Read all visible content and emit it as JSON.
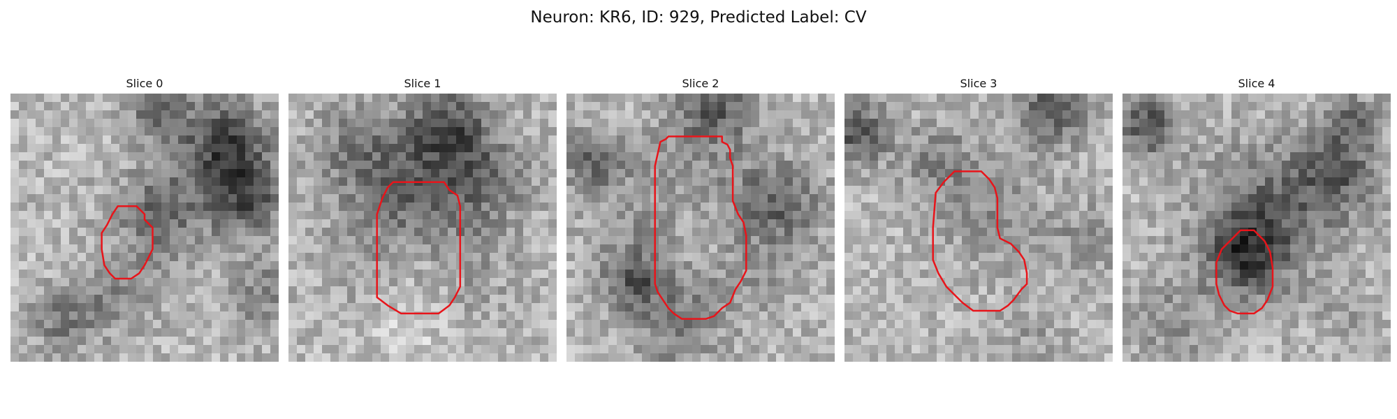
{
  "figure": {
    "title": "Neuron: KR6, ID: 929, Predicted Label: CV",
    "panels": [
      {
        "label": "Slice 0",
        "seed": 11,
        "texture": {
          "blobs": [
            [
              0.56,
              0.45,
              0.12,
              -0.3
            ],
            [
              0.8,
              0.2,
              0.12,
              -0.45
            ],
            [
              0.88,
              0.4,
              0.1,
              -0.35
            ],
            [
              0.2,
              0.85,
              0.08,
              -0.25
            ],
            [
              0.4,
              0.75,
              0.1,
              -0.2
            ],
            [
              0.55,
              0.05,
              0.08,
              -0.3
            ],
            [
              0.95,
              0.75,
              0.1,
              -0.2
            ]
          ]
        },
        "outline": [
          [
            0.4,
            0.42
          ],
          [
            0.47,
            0.42
          ],
          [
            0.5,
            0.45
          ],
          [
            0.5,
            0.47
          ],
          [
            0.53,
            0.5
          ],
          [
            0.53,
            0.58
          ],
          [
            0.52,
            0.6
          ],
          [
            0.5,
            0.64
          ],
          [
            0.48,
            0.67
          ],
          [
            0.45,
            0.69
          ],
          [
            0.39,
            0.69
          ],
          [
            0.37,
            0.67
          ],
          [
            0.35,
            0.64
          ],
          [
            0.34,
            0.58
          ],
          [
            0.34,
            0.52
          ],
          [
            0.36,
            0.49
          ],
          [
            0.38,
            0.45
          ]
        ]
      },
      {
        "label": "Slice 1",
        "seed": 23,
        "texture": {
          "blobs": [
            [
              0.5,
              0.55,
              0.2,
              -0.28
            ],
            [
              0.5,
              0.3,
              0.16,
              -0.18
            ],
            [
              0.6,
              0.12,
              0.1,
              -0.35
            ],
            [
              0.25,
              0.2,
              0.12,
              -0.2
            ],
            [
              0.75,
              0.3,
              0.1,
              -0.2
            ],
            [
              0.5,
              0.6,
              0.12,
              0.2
            ],
            [
              0.45,
              0.85,
              0.12,
              0.15
            ]
          ]
        },
        "outline": [
          [
            0.39,
            0.33
          ],
          [
            0.58,
            0.33
          ],
          [
            0.6,
            0.36
          ],
          [
            0.63,
            0.38
          ],
          [
            0.64,
            0.42
          ],
          [
            0.64,
            0.72
          ],
          [
            0.62,
            0.76
          ],
          [
            0.6,
            0.79
          ],
          [
            0.56,
            0.82
          ],
          [
            0.42,
            0.82
          ],
          [
            0.37,
            0.79
          ],
          [
            0.33,
            0.76
          ],
          [
            0.33,
            0.7
          ],
          [
            0.33,
            0.45
          ],
          [
            0.35,
            0.39
          ],
          [
            0.37,
            0.35
          ]
        ]
      },
      {
        "label": "Slice 2",
        "seed": 37,
        "texture": {
          "blobs": [
            [
              0.5,
              0.52,
              0.22,
              -0.3
            ],
            [
              0.5,
              0.52,
              0.12,
              0.28
            ],
            [
              0.55,
              0.05,
              0.1,
              -0.35
            ],
            [
              0.1,
              0.25,
              0.08,
              -0.3
            ],
            [
              0.25,
              0.7,
              0.08,
              -0.3
            ],
            [
              0.8,
              0.4,
              0.1,
              -0.25
            ],
            [
              0.4,
              0.9,
              0.1,
              -0.15
            ]
          ]
        },
        "outline": [
          [
            0.35,
            0.18
          ],
          [
            0.37,
            0.17
          ],
          [
            0.38,
            0.16
          ],
          [
            0.58,
            0.16
          ],
          [
            0.58,
            0.18
          ],
          [
            0.6,
            0.19
          ],
          [
            0.61,
            0.21
          ],
          [
            0.61,
            0.24
          ],
          [
            0.62,
            0.27
          ],
          [
            0.62,
            0.4
          ],
          [
            0.64,
            0.45
          ],
          [
            0.66,
            0.48
          ],
          [
            0.67,
            0.53
          ],
          [
            0.67,
            0.66
          ],
          [
            0.65,
            0.7
          ],
          [
            0.63,
            0.73
          ],
          [
            0.61,
            0.78
          ],
          [
            0.58,
            0.8
          ],
          [
            0.56,
            0.82
          ],
          [
            0.55,
            0.83
          ],
          [
            0.52,
            0.84
          ],
          [
            0.43,
            0.84
          ],
          [
            0.4,
            0.82
          ],
          [
            0.38,
            0.8
          ],
          [
            0.36,
            0.77
          ],
          [
            0.34,
            0.74
          ],
          [
            0.33,
            0.71
          ],
          [
            0.33,
            0.35
          ],
          [
            0.33,
            0.27
          ]
        ]
      },
      {
        "label": "Slice 3",
        "seed": 53,
        "texture": {
          "blobs": [
            [
              0.55,
              0.45,
              0.14,
              -0.15
            ],
            [
              0.78,
              0.05,
              0.1,
              -0.35
            ],
            [
              0.05,
              0.15,
              0.08,
              -0.4
            ],
            [
              0.35,
              0.25,
              0.1,
              -0.2
            ],
            [
              0.9,
              0.55,
              0.1,
              -0.15
            ],
            [
              0.7,
              0.9,
              0.1,
              -0.1
            ]
          ]
        },
        "outline": [
          [
            0.37,
            0.33
          ],
          [
            0.41,
            0.29
          ],
          [
            0.51,
            0.29
          ],
          [
            0.54,
            0.32
          ],
          [
            0.56,
            0.35
          ],
          [
            0.57,
            0.39
          ],
          [
            0.57,
            0.5
          ],
          [
            0.58,
            0.54
          ],
          [
            0.62,
            0.56
          ],
          [
            0.65,
            0.59
          ],
          [
            0.67,
            0.62
          ],
          [
            0.68,
            0.67
          ],
          [
            0.68,
            0.71
          ],
          [
            0.66,
            0.73
          ],
          [
            0.63,
            0.77
          ],
          [
            0.61,
            0.79
          ],
          [
            0.58,
            0.81
          ],
          [
            0.48,
            0.81
          ],
          [
            0.44,
            0.78
          ],
          [
            0.4,
            0.74
          ],
          [
            0.38,
            0.72
          ],
          [
            0.35,
            0.67
          ],
          [
            0.33,
            0.62
          ],
          [
            0.33,
            0.5
          ],
          [
            0.34,
            0.37
          ]
        ]
      },
      {
        "label": "Slice 4",
        "seed": 71,
        "texture": {
          "blobs": [
            [
              0.55,
              0.45,
              0.18,
              -0.32
            ],
            [
              0.45,
              0.6,
              0.1,
              -0.35
            ],
            [
              0.1,
              0.12,
              0.08,
              -0.4
            ],
            [
              0.8,
              0.3,
              0.1,
              -0.3
            ],
            [
              0.85,
              0.1,
              0.08,
              -0.25
            ],
            [
              0.2,
              0.85,
              0.12,
              -0.15
            ],
            [
              0.85,
              0.85,
              0.08,
              -0.1
            ]
          ]
        },
        "outline": [
          [
            0.44,
            0.51
          ],
          [
            0.49,
            0.51
          ],
          [
            0.51,
            0.53
          ],
          [
            0.53,
            0.55
          ],
          [
            0.55,
            0.59
          ],
          [
            0.56,
            0.65
          ],
          [
            0.56,
            0.72
          ],
          [
            0.54,
            0.77
          ],
          [
            0.52,
            0.8
          ],
          [
            0.49,
            0.82
          ],
          [
            0.43,
            0.82
          ],
          [
            0.4,
            0.81
          ],
          [
            0.38,
            0.79
          ],
          [
            0.36,
            0.75
          ],
          [
            0.35,
            0.71
          ],
          [
            0.35,
            0.63
          ],
          [
            0.37,
            0.58
          ],
          [
            0.4,
            0.55
          ]
        ]
      }
    ],
    "colors": {
      "outline": "#e8141a",
      "title": "#111111"
    }
  }
}
